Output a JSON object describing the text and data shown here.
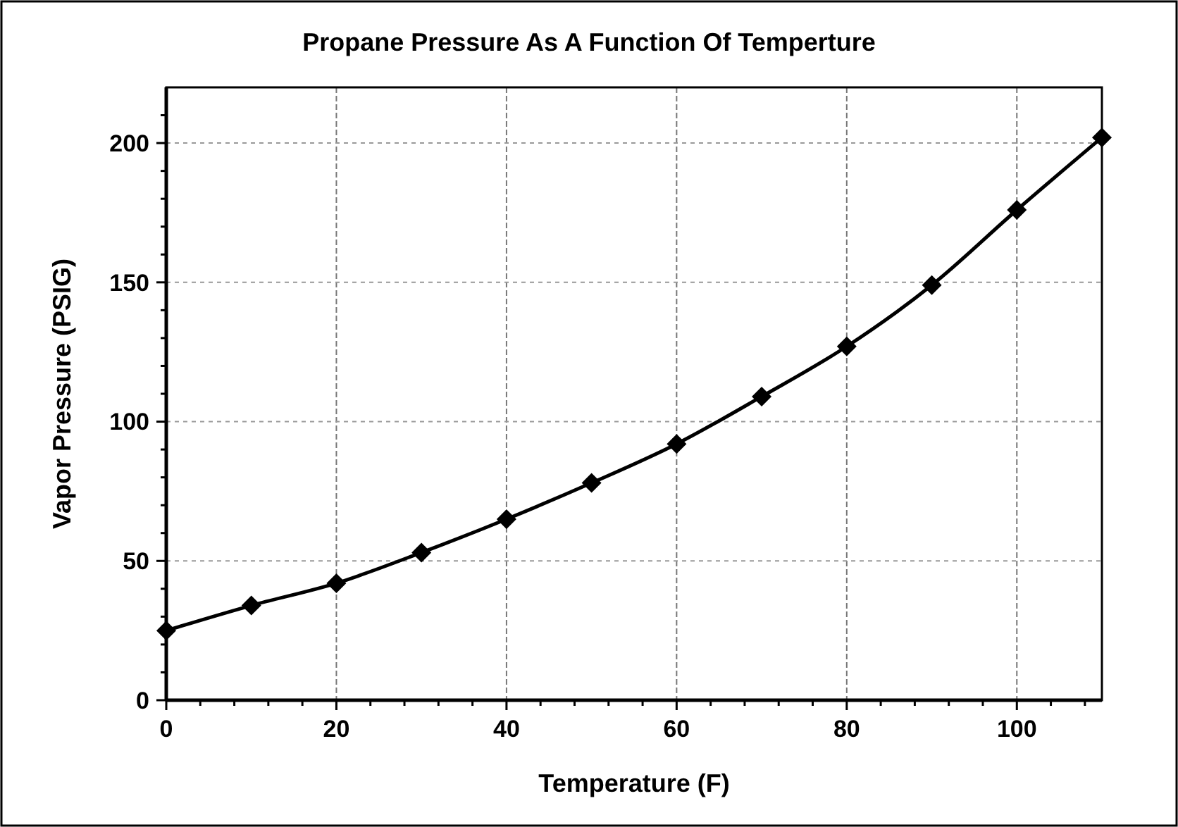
{
  "chart_data": {
    "type": "line",
    "title": "Propane Pressure As A Function Of Temperture",
    "xlabel": "Temperature (F)",
    "ylabel": "Vapor Pressure (PSIG)",
    "x": [
      0,
      10,
      20,
      30,
      40,
      50,
      60,
      70,
      80,
      90,
      100,
      110
    ],
    "series": [
      {
        "color": "#000000",
        "values": [
          25,
          34,
          42,
          53,
          65,
          78,
          92,
          109,
          127,
          149,
          176,
          202
        ]
      }
    ],
    "xlim": [
      0,
      110
    ],
    "ylim": [
      0,
      220
    ],
    "xticks": [
      0,
      {
        "value": 4,
        "label": null
      },
      {
        "value": 8,
        "label": null
      },
      {
        "value": 12,
        "label": null
      },
      {
        "value": 16,
        "label": null
      },
      20,
      {
        "value": 24,
        "label": null
      },
      {
        "value": 28,
        "label": null
      },
      {
        "value": 32,
        "label": null
      },
      {
        "value": 36,
        "label": null
      },
      40,
      {
        "value": 44,
        "label": null
      },
      {
        "value": 48,
        "label": null
      },
      {
        "value": 52,
        "label": null
      },
      {
        "value": 56,
        "label": null
      },
      60,
      {
        "value": 64,
        "label": null
      },
      {
        "value": 68,
        "label": null
      },
      {
        "value": 72,
        "label": null
      },
      {
        "value": 76,
        "label": null
      },
      80,
      {
        "value": 84,
        "label": null
      },
      {
        "value": 88,
        "label": null
      },
      {
        "value": 92,
        "label": null
      },
      {
        "value": 96,
        "label": null
      },
      100,
      {
        "value": 104,
        "label": null
      },
      {
        "value": 108,
        "label": null
      }
    ],
    "yticks": [
      0,
      {
        "value": 10,
        "label": null
      },
      {
        "value": 20,
        "label": null
      },
      {
        "value": 30,
        "label": null
      },
      {
        "value": 40,
        "label": null
      },
      50,
      {
        "value": 60,
        "label": null
      },
      {
        "value": 70,
        "label": null
      },
      {
        "value": 80,
        "label": null
      },
      {
        "value": 90,
        "label": null
      },
      100,
      {
        "value": 110,
        "label": null
      },
      {
        "value": 120,
        "label": null
      },
      {
        "value": 130,
        "label": null
      },
      {
        "value": 140,
        "label": null
      },
      150,
      {
        "value": 160,
        "label": null
      },
      {
        "value": 170,
        "label": null
      },
      {
        "value": 180,
        "label": null
      },
      {
        "value": 190,
        "label": null
      },
      200,
      {
        "value": 210,
        "label": null
      }
    ],
    "grid": true,
    "marker": "diamond",
    "line_style": "solid"
  }
}
